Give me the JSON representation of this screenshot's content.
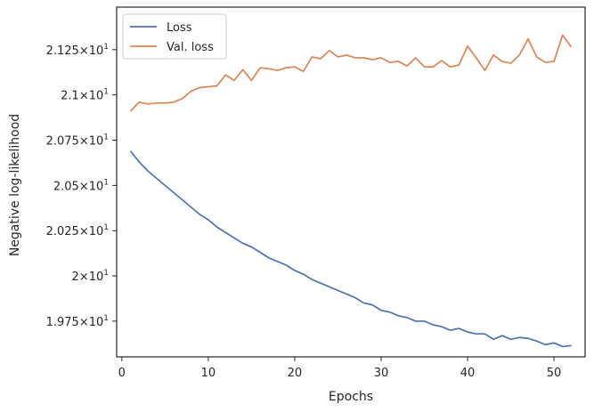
{
  "chart_data": {
    "type": "line",
    "xlabel": "Epochs",
    "ylabel": "Negative log-likelihood",
    "xlim": [
      -0.6,
      53.6
    ],
    "ylim": [
      19.553,
      21.485
    ],
    "x_ticks": [
      0,
      10,
      20,
      30,
      40,
      50
    ],
    "y_ticks": [
      {
        "value": 19.75,
        "mantissa": "1.975"
      },
      {
        "value": 20.0,
        "mantissa": "2"
      },
      {
        "value": 20.25,
        "mantissa": "2.025"
      },
      {
        "value": 20.5,
        "mantissa": "2.05"
      },
      {
        "value": 20.75,
        "mantissa": "2.075"
      },
      {
        "value": 21.0,
        "mantissa": "2.1"
      },
      {
        "value": 21.25,
        "mantissa": "2.125"
      }
    ],
    "y_tick_base": "10",
    "y_tick_exponent": "1",
    "grid": false,
    "legend_position": "top-left",
    "x": [
      1,
      2,
      3,
      4,
      5,
      6,
      7,
      8,
      9,
      10,
      11,
      12,
      13,
      14,
      15,
      16,
      17,
      18,
      19,
      20,
      21,
      22,
      23,
      24,
      25,
      26,
      27,
      28,
      29,
      30,
      31,
      32,
      33,
      34,
      35,
      36,
      37,
      38,
      39,
      40,
      41,
      42,
      43,
      44,
      45,
      46,
      47,
      48,
      49,
      50,
      51,
      52
    ],
    "series": [
      {
        "name": "Loss",
        "color": "#4c72b0",
        "values": [
          20.69,
          20.63,
          20.58,
          20.54,
          20.5,
          20.46,
          20.42,
          20.38,
          20.34,
          20.31,
          20.27,
          20.24,
          20.21,
          20.18,
          20.16,
          20.13,
          20.1,
          20.08,
          20.06,
          20.03,
          20.01,
          19.98,
          19.96,
          19.94,
          19.92,
          19.9,
          19.88,
          19.85,
          19.84,
          19.81,
          19.8,
          19.78,
          19.77,
          19.75,
          19.75,
          19.73,
          19.72,
          19.7,
          19.71,
          19.69,
          19.68,
          19.68,
          19.65,
          19.67,
          19.65,
          19.66,
          19.655,
          19.64,
          19.62,
          19.63,
          19.61,
          19.615
        ]
      },
      {
        "name": "Val. loss",
        "color": "#dd8452",
        "values": [
          20.91,
          20.96,
          20.95,
          20.955,
          20.955,
          20.96,
          20.98,
          21.02,
          21.04,
          21.045,
          21.05,
          21.11,
          21.08,
          21.14,
          21.08,
          21.15,
          21.145,
          21.135,
          21.15,
          21.155,
          21.13,
          21.21,
          21.2,
          21.245,
          21.21,
          21.22,
          21.205,
          21.205,
          21.195,
          21.205,
          21.18,
          21.185,
          21.16,
          21.205,
          21.155,
          21.155,
          21.19,
          21.155,
          21.165,
          21.27,
          21.205,
          21.135,
          21.22,
          21.185,
          21.175,
          21.22,
          21.31,
          21.21,
          21.18,
          21.185,
          21.33,
          21.265
        ]
      }
    ]
  }
}
